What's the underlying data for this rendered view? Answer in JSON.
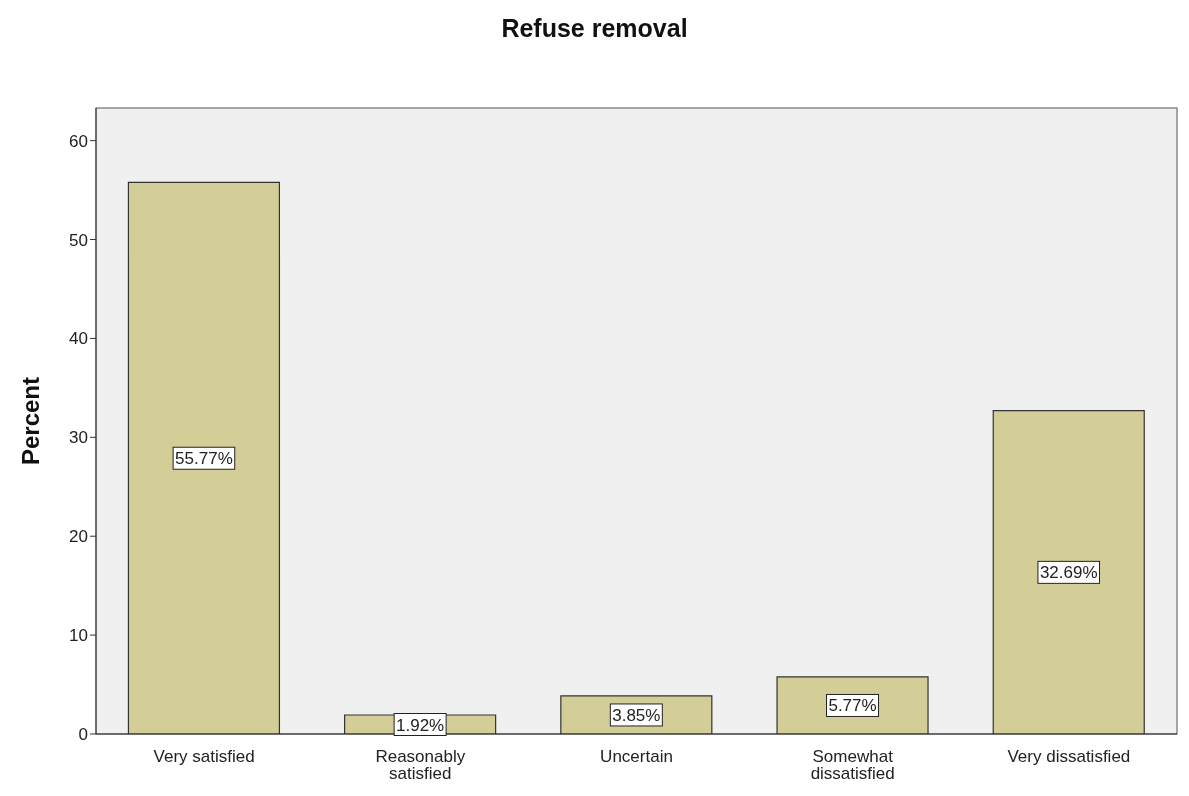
{
  "chart_data": {
    "type": "bar",
    "title": "Refuse removal",
    "ylabel": "Percent",
    "categories": [
      "Very satisfied",
      "Reasonably satisfied",
      "Uncertain",
      "Somewhat dissatisfied",
      "Very dissatisfied"
    ],
    "values": [
      55.77,
      1.92,
      3.85,
      5.77,
      32.69
    ],
    "value_labels": [
      "55.77%",
      "1.92%",
      "3.85%",
      "5.77%",
      "32.69%"
    ],
    "color": "#d3ce97",
    "ylim": [
      0,
      63.3
    ],
    "yticks": [
      0,
      10,
      20,
      30,
      40,
      50,
      60
    ],
    "grid": false
  }
}
